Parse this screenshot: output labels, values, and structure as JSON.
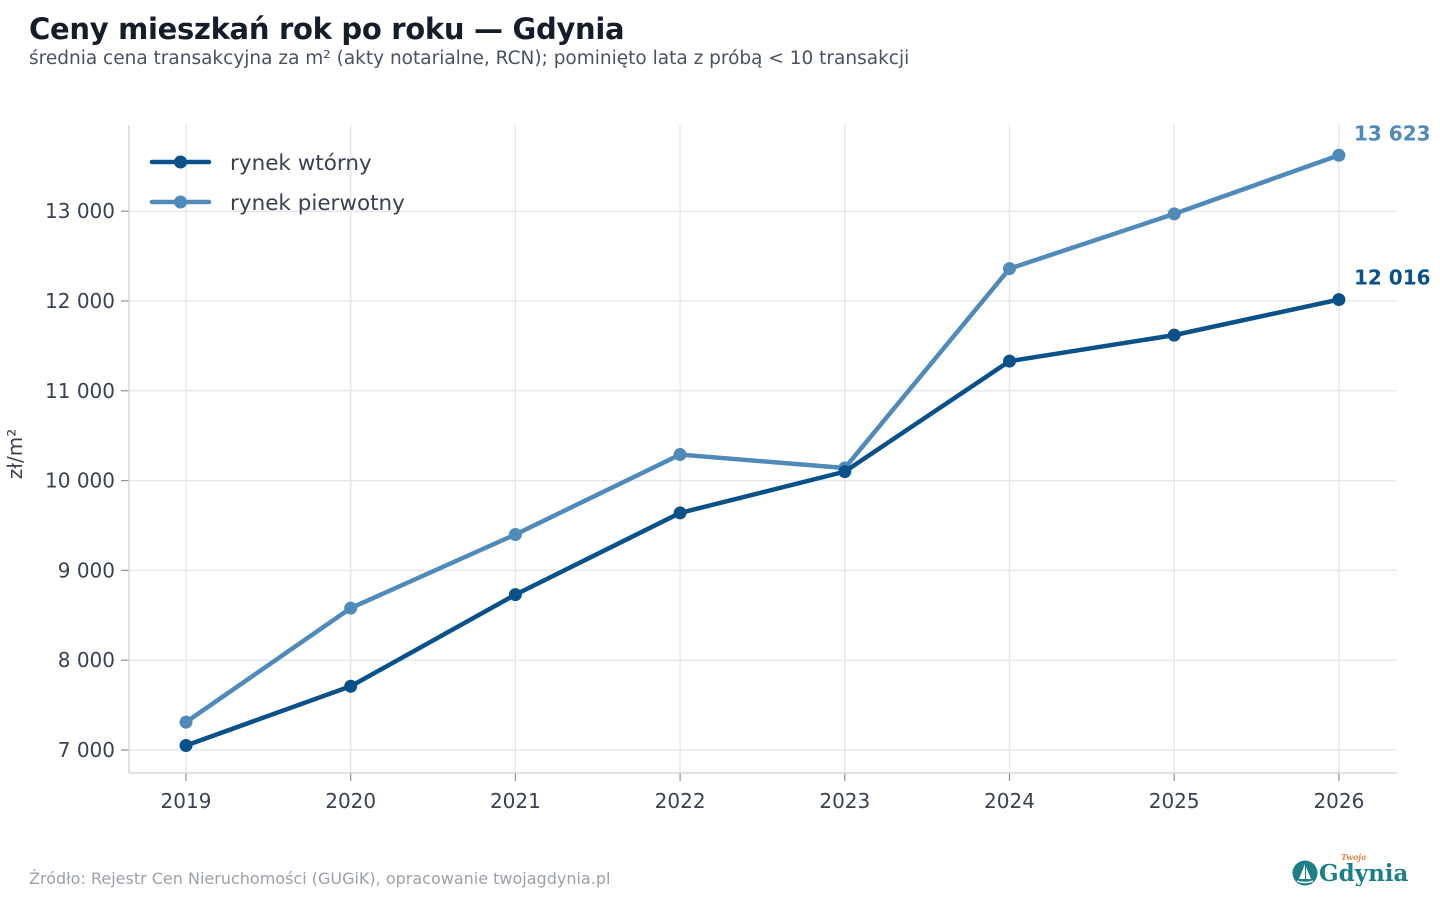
{
  "chart_data": {
    "type": "line",
    "title": "Ceny mieszkań rok po roku — Gdynia",
    "subtitle": "średnia cena transakcyjna za m² (akty notarialne, RCN); pominięto lata z próbą < 10 transakcji",
    "xlabel": "",
    "ylabel": "zł/m²",
    "x": [
      2019,
      2020,
      2021,
      2022,
      2023,
      2024,
      2025,
      2026
    ],
    "ylim": [
      6800,
      13800
    ],
    "yticks": [
      7000,
      8000,
      9000,
      10000,
      11000,
      12000,
      13000
    ],
    "ytick_labels": [
      "7 000",
      "8 000",
      "9 000",
      "10 000",
      "11 000",
      "12 000",
      "13 000"
    ],
    "grid": true,
    "legend_position": "top-left",
    "series": [
      {
        "name": "rynek wtórny",
        "color": "#0b5189",
        "values": [
          7050,
          7710,
          8730,
          9640,
          10100,
          11330,
          11620,
          12016
        ],
        "end_label": "12 016"
      },
      {
        "name": "rynek pierwotny",
        "color": "#4f8ab9",
        "values": [
          7310,
          8580,
          9400,
          10290,
          10140,
          12360,
          12970,
          13623
        ],
        "end_label": "13 623"
      }
    ]
  },
  "footer": {
    "source": "Źródło: Rejestr Cen Nieruchomości (GUGiK), opracowanie twojagdynia.pl"
  },
  "logo": {
    "text": "Gdynia",
    "small_text": "Twoja"
  }
}
